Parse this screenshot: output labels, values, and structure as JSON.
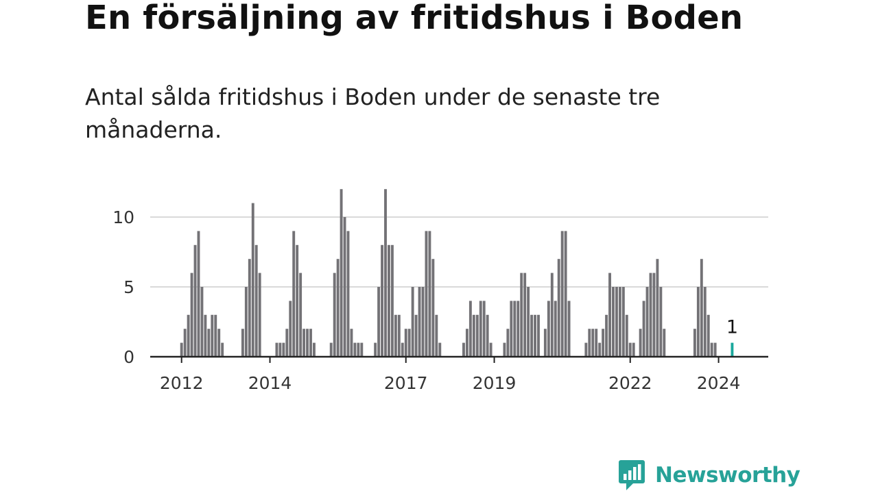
{
  "title": "En försäljning av fritidshus i Boden",
  "subtitle": "Antal sålda fritidshus i Boden under de senaste tre månaderna.",
  "brand": {
    "name": "Newsworthy",
    "icon": "newsworthy-logo-icon",
    "color": "#27a298"
  },
  "chart_data": {
    "type": "bar",
    "title": "En försäljning av fritidshus i Boden",
    "subtitle": "Antal sålda fritidshus i Boden under de senaste tre månaderna.",
    "xlabel": "",
    "ylabel": "",
    "ylim": [
      0,
      12
    ],
    "y_ticks": [
      0,
      5,
      10
    ],
    "x_ticks": [
      "2012",
      "2014",
      "2017",
      "2019",
      "2022",
      "2024"
    ],
    "grid": true,
    "bar_color": "#737276",
    "highlight_color": "#1aa89c",
    "groups": [
      {
        "values": [
          1,
          2,
          3,
          6,
          8,
          9,
          5,
          3,
          2,
          3,
          3,
          2,
          1
        ]
      },
      {
        "values": [
          2,
          5,
          7,
          11,
          8,
          6
        ]
      },
      {
        "values": [
          1,
          1,
          1,
          2,
          4,
          9,
          8,
          6,
          2,
          2,
          2,
          1
        ]
      },
      {
        "values": [
          1,
          6,
          7,
          12,
          10,
          9,
          2,
          1,
          1,
          1
        ]
      },
      {
        "values": [
          1,
          5,
          8,
          12,
          8,
          8,
          3,
          3,
          1,
          2,
          2,
          5,
          3,
          5,
          5,
          9,
          9,
          7,
          3,
          1
        ]
      },
      {
        "values": [
          1,
          2,
          4,
          3,
          3,
          4,
          4,
          3,
          1
        ]
      },
      {
        "values": [
          1,
          2,
          4,
          4,
          4,
          6,
          6,
          5,
          3,
          3,
          3
        ]
      },
      {
        "values": [
          2,
          4,
          6,
          4,
          7,
          9,
          9,
          4
        ]
      },
      {
        "values": [
          1,
          2,
          2,
          2,
          1,
          2,
          3,
          6,
          5,
          5,
          5,
          5,
          3,
          1,
          1
        ]
      },
      {
        "values": [
          2,
          4,
          5,
          6,
          6,
          7,
          5,
          2
        ]
      },
      {
        "values": [
          2,
          5,
          7,
          5,
          3,
          1,
          1
        ]
      }
    ],
    "highlight": {
      "value": 1,
      "label": "1"
    }
  }
}
